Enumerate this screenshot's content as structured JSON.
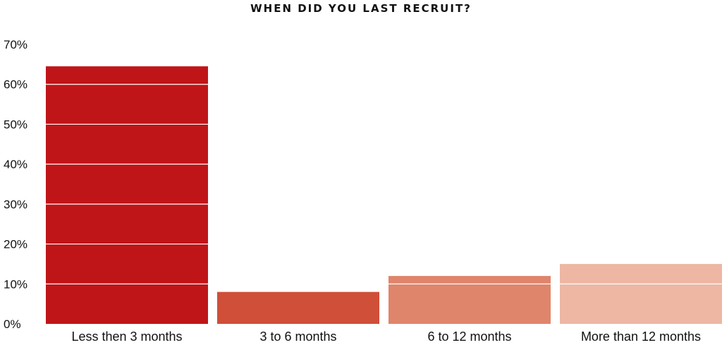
{
  "chart_data": {
    "type": "bar",
    "title": "WHEN DID YOU LAST RECRUIT?",
    "xlabel": "",
    "ylabel": "",
    "categories": [
      "Less then 3 months",
      "3 to 6 months",
      "6 to 12 months",
      "More than 12 months"
    ],
    "values": [
      64.5,
      8,
      12,
      15
    ],
    "value_unit": "%",
    "ylim": [
      0,
      70
    ],
    "yticks": [
      "0%",
      "10%",
      "20%",
      "30%",
      "40%",
      "50%",
      "60%",
      "70%"
    ],
    "grid": "horizontal white lines over bars",
    "legend": "none",
    "colors": [
      "#c01518",
      "#cf4f38",
      "#df856b",
      "#edb7a4"
    ]
  }
}
